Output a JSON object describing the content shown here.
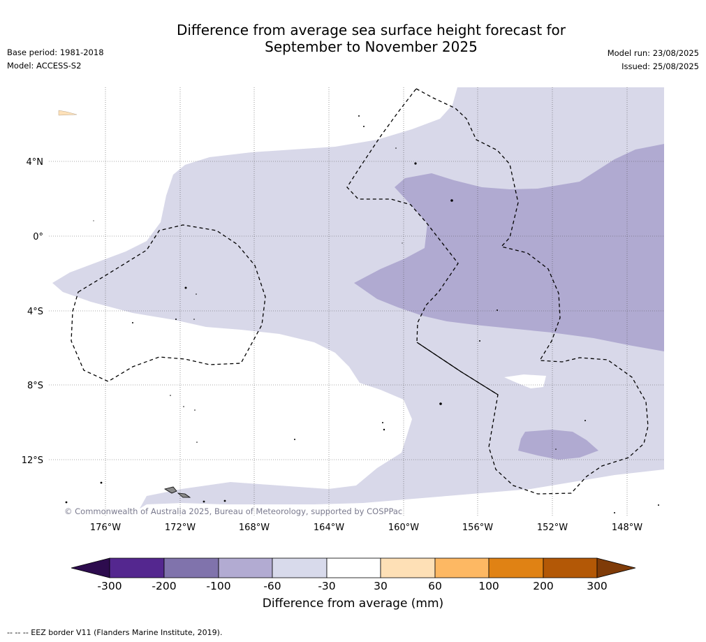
{
  "header": {
    "title_line1": "Difference from average sea surface height forecast for",
    "title_line2": "September to November 2025",
    "base_period": "Base period: 1981-2018",
    "model": "Model: ACCESS-S2",
    "model_run": "Model run: 23/08/2025",
    "issued": "Issued: 25/08/2025"
  },
  "map": {
    "lat_labels": [
      "4°N",
      "0°",
      "4°S",
      "8°S",
      "12°S"
    ],
    "lon_labels": [
      "176°W",
      "172°W",
      "168°W",
      "164°W",
      "160°W",
      "156°W",
      "152°W",
      "148°W"
    ],
    "copyright": "© Commonwealth of Australia 2025, Bureau of Meteorology, supported by COSPPac",
    "colors": {
      "c_neg_60_30": "#d8d8e9",
      "c_neg_100_60": "#b0aad1",
      "c_30_60": "#fde1b9",
      "land": "#888888"
    }
  },
  "colorbar": {
    "title": "Difference from average (mm)",
    "ticks": [
      "-300",
      "-200",
      "-100",
      "-60",
      "-30",
      "30",
      "60",
      "100",
      "200",
      "300"
    ],
    "colors": [
      "#2d0c4e",
      "#54278f",
      "#8073ac",
      "#b2abd2",
      "#d8daeb",
      "#ffffff",
      "#fee0b6",
      "#fdb863",
      "#e08214",
      "#b35806",
      "#7f3b08"
    ]
  },
  "footnote": "--  --  -- EEZ border V11 (Flanders Marine Institute, 2019)."
}
